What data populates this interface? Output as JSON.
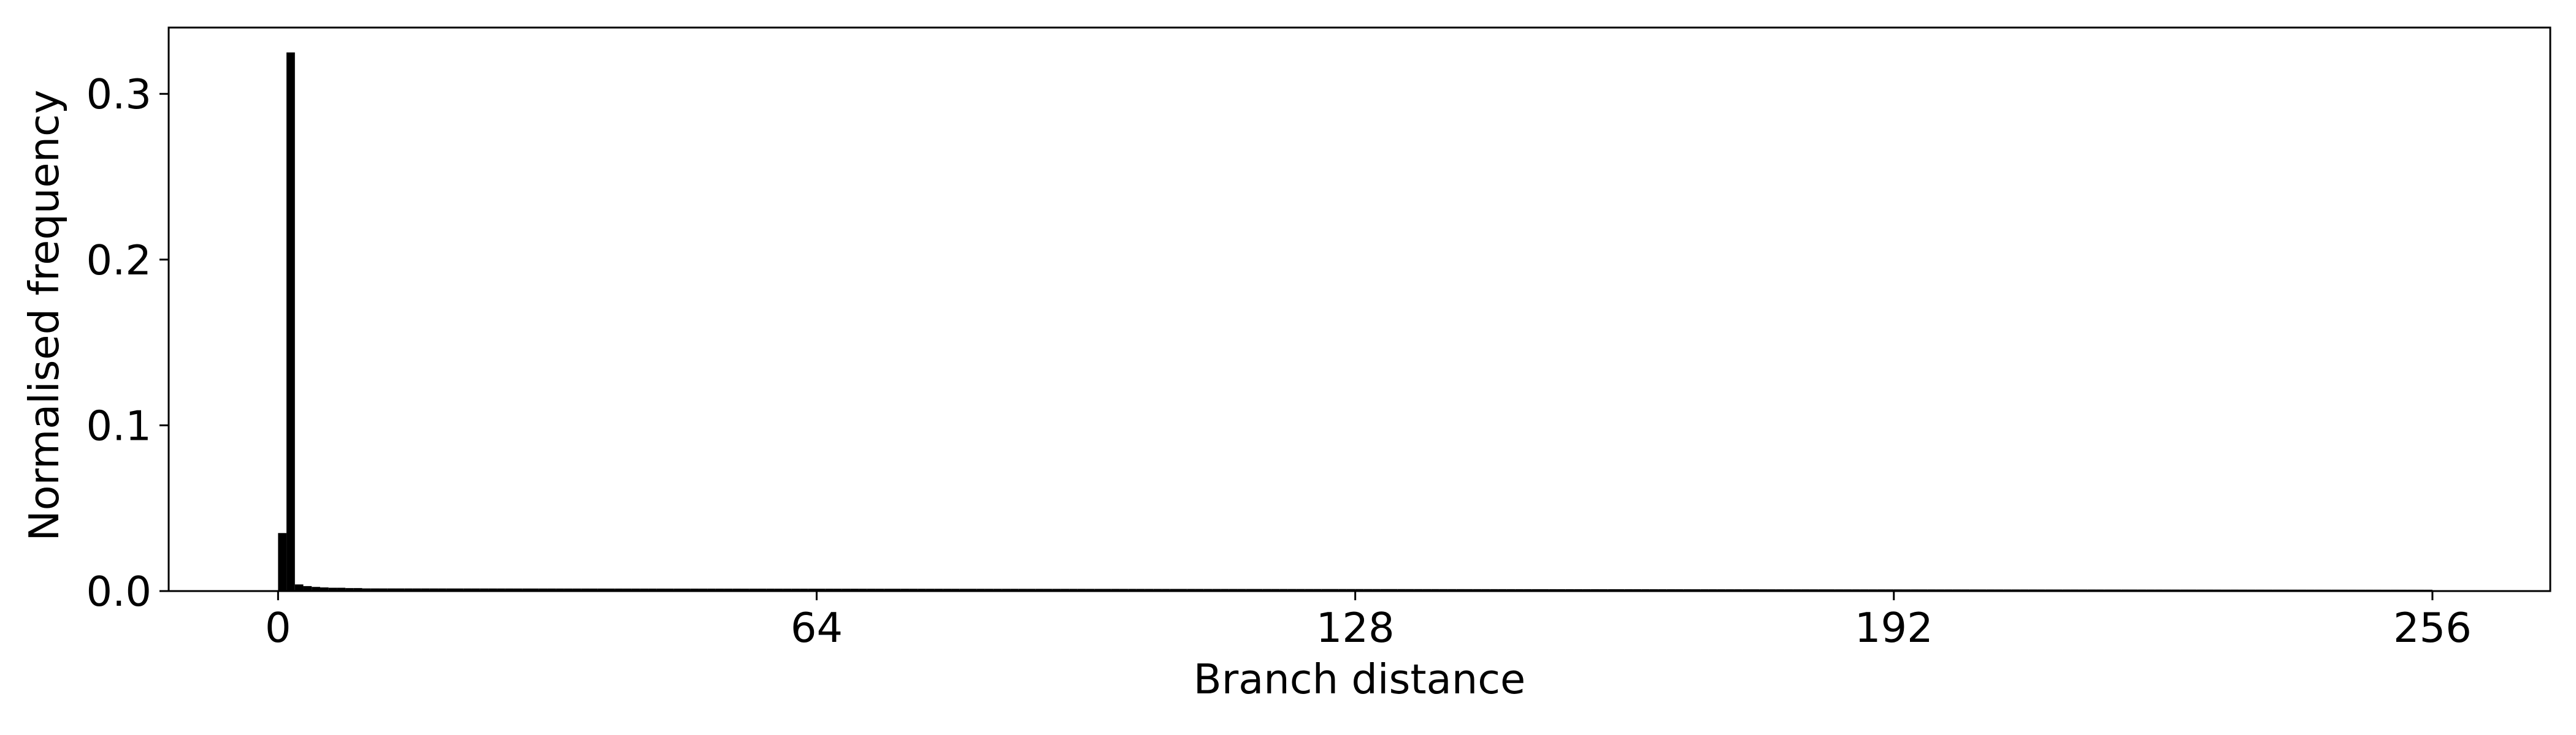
{
  "chart_data": {
    "type": "bar",
    "title": "",
    "xlabel": "Branch distance",
    "ylabel": "Normalised frequency",
    "xlim": [
      -13,
      270
    ],
    "ylim": [
      0,
      0.34
    ],
    "x_ticks": [
      {
        "value": 0,
        "label": "0"
      },
      {
        "value": 64,
        "label": "64"
      },
      {
        "value": 128,
        "label": "128"
      },
      {
        "value": 192,
        "label": "192"
      },
      {
        "value": 256,
        "label": "256"
      }
    ],
    "y_ticks": [
      {
        "value": 0.0,
        "label": "0.0"
      },
      {
        "value": 0.1,
        "label": "0.1"
      },
      {
        "value": 0.2,
        "label": "0.2"
      },
      {
        "value": 0.3,
        "label": "0.3"
      }
    ],
    "bin_width": 1,
    "bar_color": "#000000",
    "bars": [
      {
        "x": 0,
        "y": 0.035
      },
      {
        "x": 1,
        "y": 0.325
      },
      {
        "x": 2,
        "y": 0.004
      },
      {
        "x": 3,
        "y": 0.003
      },
      {
        "x": 4,
        "y": 0.0025
      },
      {
        "x": 5,
        "y": 0.0022
      },
      {
        "x": 6,
        "y": 0.002
      },
      {
        "x": 7,
        "y": 0.002
      },
      {
        "x": 8,
        "y": 0.0018
      },
      {
        "x": 9,
        "y": 0.0018
      }
    ],
    "tail": {
      "x_start": 10,
      "x_end": 256,
      "y_start": 0.0016,
      "y_end": 0.0008
    }
  }
}
